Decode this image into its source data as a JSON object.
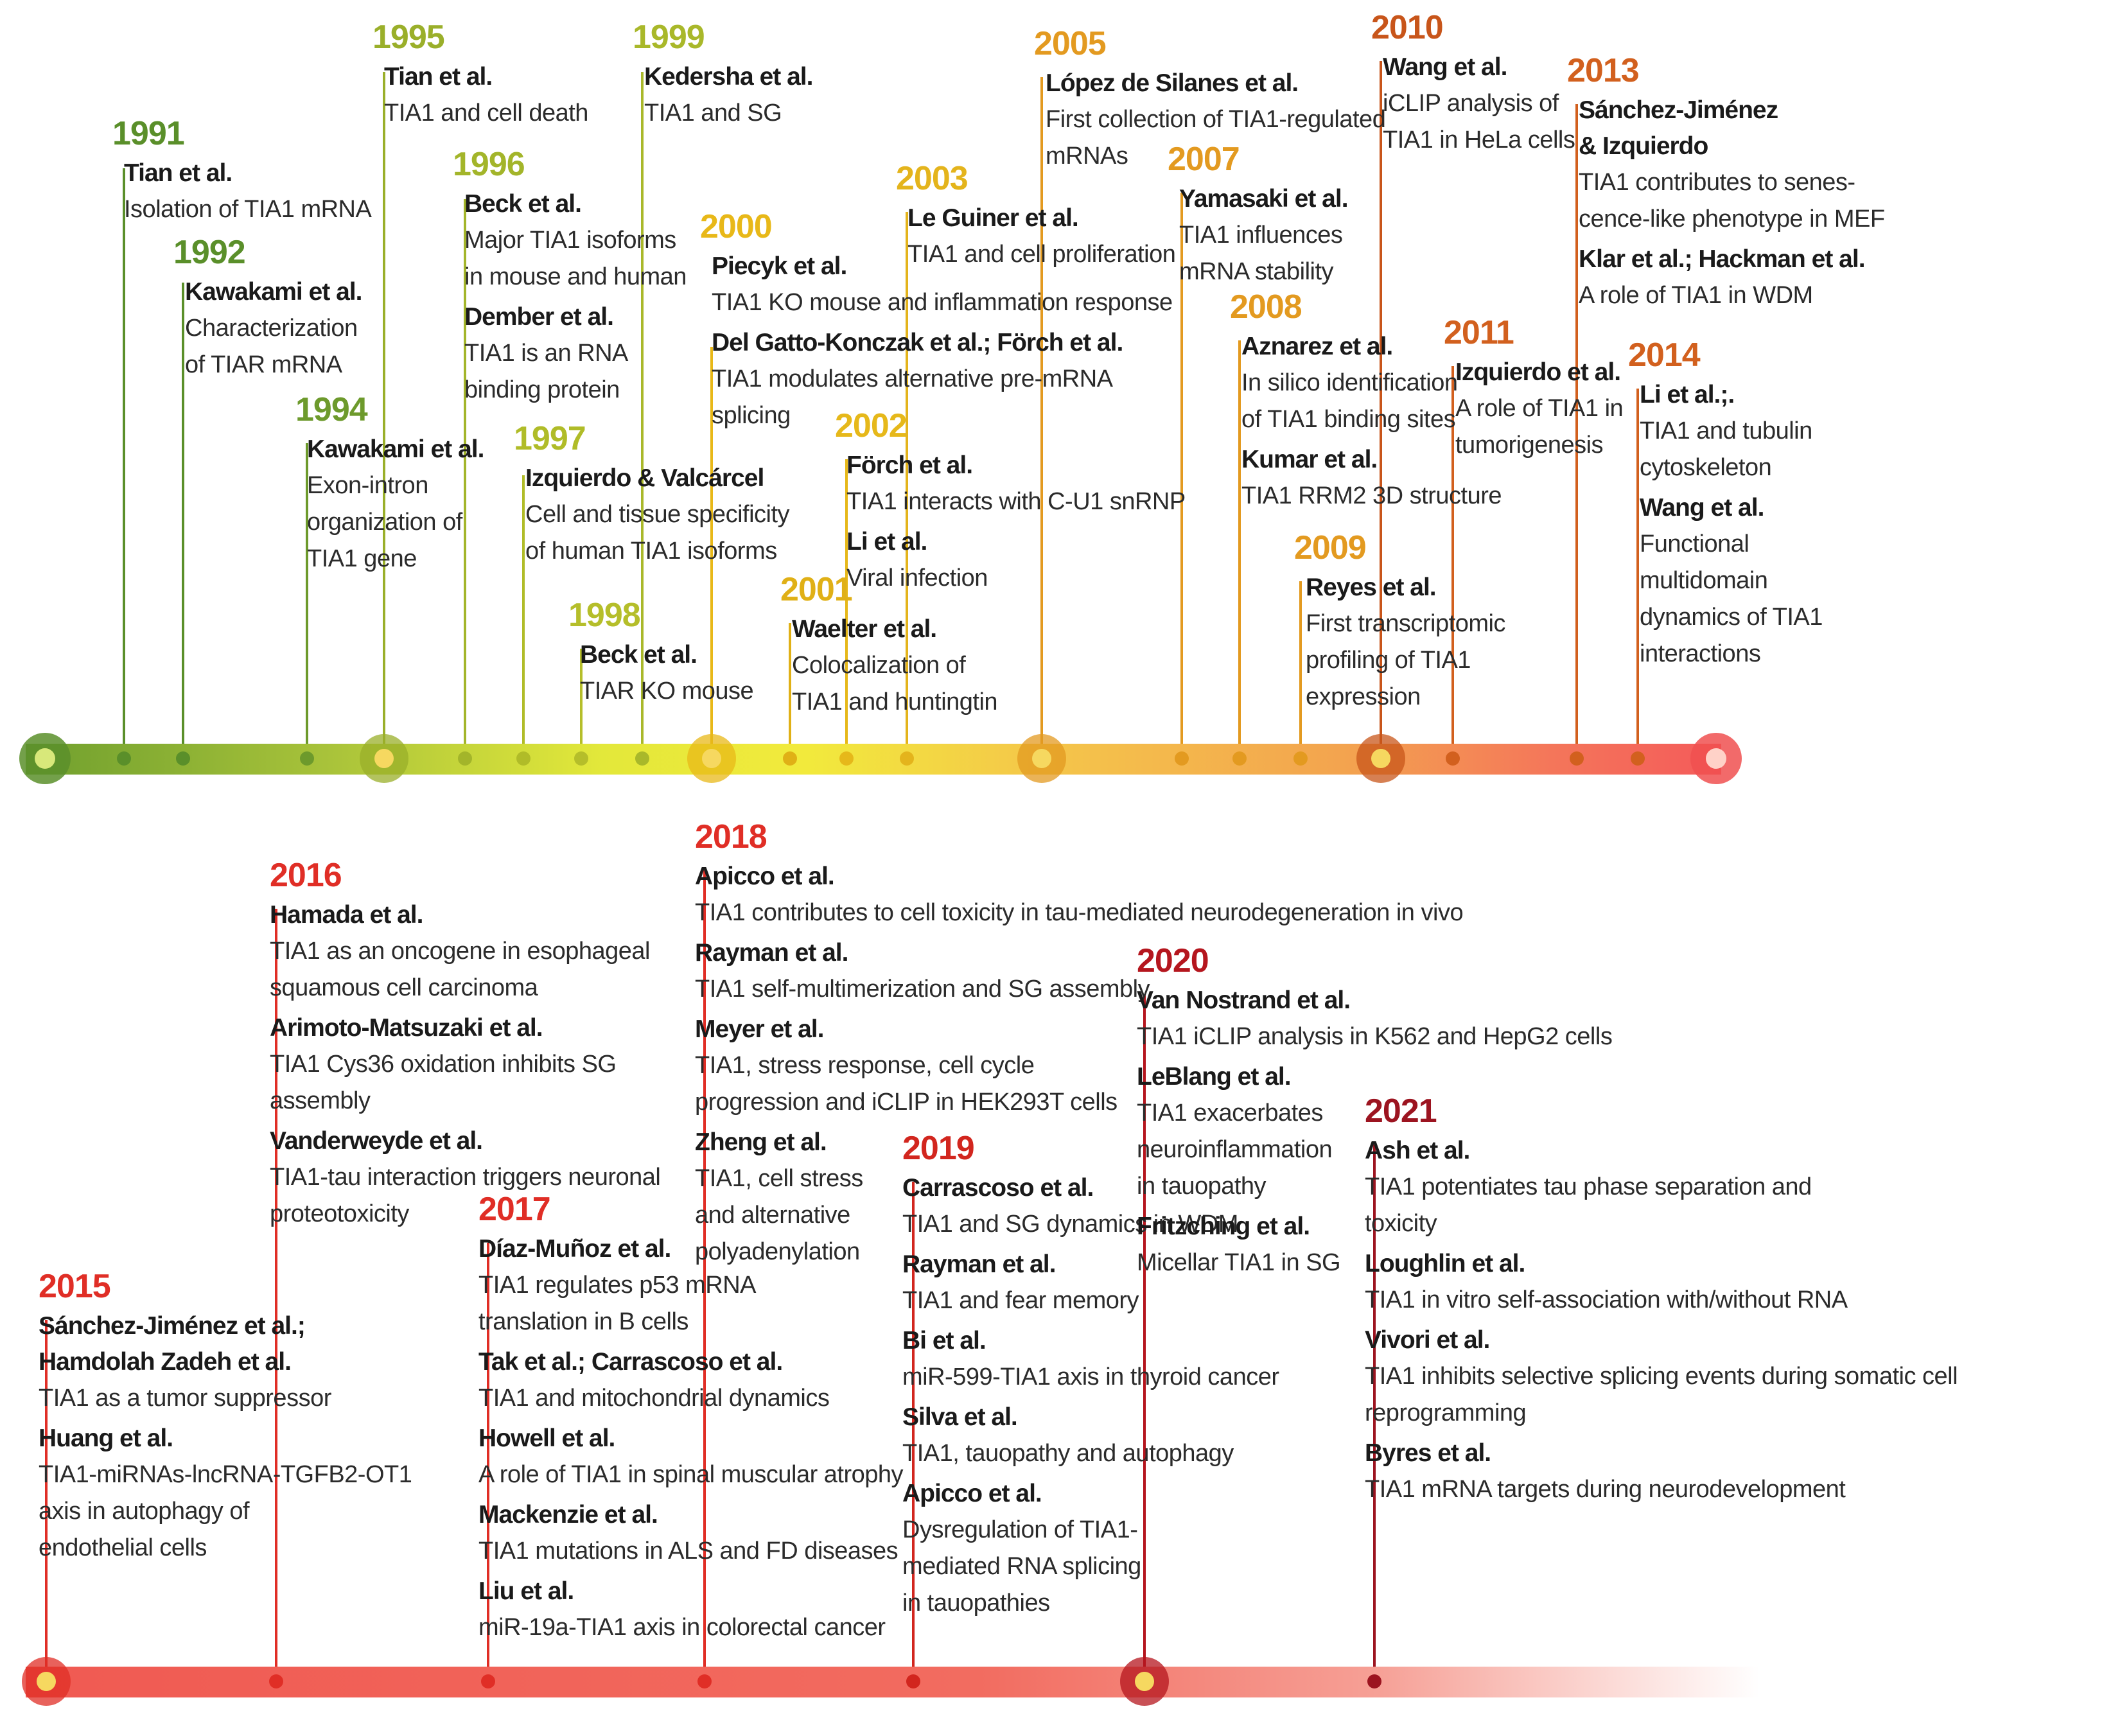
{
  "events": [
    {
      "year": "1991",
      "color": "#5a8f2a",
      "entries": [
        {
          "authors": "Tian et al.",
          "desc": "Isolation of TIA1 mRNA"
        }
      ]
    },
    {
      "year": "1992",
      "color": "#5a8f2a",
      "entries": [
        {
          "authors": "Kawakami et al.",
          "desc": "Characterization\nof TIAR mRNA"
        }
      ]
    },
    {
      "year": "1994",
      "color": "#6d9a2c",
      "entries": [
        {
          "authors": "Kawakami et al.",
          "desc": "Exon-intron\norganization of\nTIA1 gene"
        }
      ]
    },
    {
      "year": "1995",
      "color": "#9aaf2a",
      "entries": [
        {
          "authors": "Tian et al.",
          "desc": "TIA1 and cell death"
        }
      ]
    },
    {
      "year": "1996",
      "color": "#a3b52a",
      "entries": [
        {
          "authors": "Beck et al.",
          "desc": "Major TIA1 isoforms\nin mouse and human"
        },
        {
          "authors": "Dember et al.",
          "desc": "TIA1 is an RNA\nbinding protein"
        }
      ]
    },
    {
      "year": "1997",
      "color": "#b0bc28",
      "entries": [
        {
          "authors": "Izquierdo & Valcárcel",
          "desc": "Cell and tissue specificity\nof human TIA1 isoforms"
        }
      ]
    },
    {
      "year": "1998",
      "color": "#b5be2a",
      "entries": [
        {
          "authors": "Beck et al.",
          "desc": "TIAR KO mouse"
        }
      ]
    },
    {
      "year": "1999",
      "color": "#a9b82a",
      "entries": [
        {
          "authors": "Kedersha et al.",
          "desc": "TIA1 and SG"
        }
      ]
    },
    {
      "year": "2000",
      "color": "#e8b818",
      "entries": [
        {
          "authors": "Piecyk et al.",
          "desc": "TIA1 KO mouse and inflammation response"
        },
        {
          "authors": "Del Gatto-Konczak et al.; Förch et al.",
          "desc": "TIA1 modulates alternative pre-mRNA\nsplicing"
        }
      ]
    },
    {
      "year": "2001",
      "color": "#e0b016",
      "entries": [
        {
          "authors": "Waelter et al.",
          "desc": "Colocalization of\nTIA1 and huntingtin"
        }
      ]
    },
    {
      "year": "2002",
      "color": "#e6b81a",
      "entries": [
        {
          "authors": "Förch et al.",
          "desc": "TIA1 interacts with C-U1 snRNP"
        },
        {
          "authors": "Li et al.",
          "desc": "Viral infection"
        }
      ]
    },
    {
      "year": "2003",
      "color": "#e4b41c",
      "entries": [
        {
          "authors": "Le Guiner et al.",
          "desc": "TIA1 and cell proliferation"
        }
      ]
    },
    {
      "year": "2005",
      "color": "#e39a20",
      "entries": [
        {
          "authors": "López de Silanes et al.",
          "desc": "First collection of TIA1-regulated\nmRNAs"
        }
      ]
    },
    {
      "year": "2007",
      "color": "#e39a20",
      "entries": [
        {
          "authors": "Yamasaki et al.",
          "desc": "TIA1 influences\nmRNA stability"
        }
      ]
    },
    {
      "year": "2008",
      "color": "#e39a20",
      "entries": [
        {
          "authors": "Aznarez et al.",
          "desc": "In silico identification\nof TIA1 binding sites"
        },
        {
          "authors": "Kumar et al.",
          "desc": "TIA1 RRM2 3D structure"
        }
      ]
    },
    {
      "year": "2009",
      "color": "#e39a20",
      "entries": [
        {
          "authors": "Reyes et al.",
          "desc": "First transcriptomic\nprofiling of TIA1\nexpression"
        }
      ]
    },
    {
      "year": "2010",
      "color": "#c8551a",
      "entries": [
        {
          "authors": "Wang et al.",
          "desc": "iCLIP analysis of\nTIA1 in HeLa cells"
        }
      ]
    },
    {
      "year": "2011",
      "color": "#d2601e",
      "entries": [
        {
          "authors": "Izquierdo et al.",
          "desc": "A role of TIA1 in\ntumorigenesis"
        }
      ]
    },
    {
      "year": "2013",
      "color": "#d2601e",
      "entries": [
        {
          "authors": "Sánchez-Jiménez\n& Izquierdo",
          "desc": "TIA1 contributes to senes-\ncence-like phenotype in MEF"
        },
        {
          "authors": "Klar et al.; Hackman et al.",
          "desc": "A role of TIA1 in WDM"
        }
      ]
    },
    {
      "year": "2014",
      "color": "#d2601e",
      "entries": [
        {
          "authors": "Li et al.;.",
          "desc": "TIA1 and tubulin\ncytoskeleton"
        },
        {
          "authors": "Wang et al.",
          "desc": "Functional\nmultidomain\ndynamics of TIA1\ninteractions"
        }
      ]
    },
    {
      "year": "2015",
      "color": "#e02e26",
      "entries": [
        {
          "authors": "Sánchez-Jiménez et al.;\nHamdolah Zadeh et al.",
          "desc": "TIA1 as a tumor suppressor"
        },
        {
          "authors": "Huang et al.",
          "desc": "TIA1-miRNAs-lncRNA-TGFB2-OT1\naxis in autophagy of\nendothelial cells"
        }
      ]
    },
    {
      "year": "2016",
      "color": "#e02e26",
      "entries": [
        {
          "authors": "Hamada et al.",
          "desc": "TIA1 as an oncogene in esophageal\nsquamous cell carcinoma"
        },
        {
          "authors": "Arimoto-Matsuzaki et al.",
          "desc": "TIA1 Cys36 oxidation inhibits SG\nassembly"
        },
        {
          "authors": "Vanderweyde et al.",
          "desc": "TIA1-tau interaction triggers neuronal\nproteotoxicity"
        }
      ]
    },
    {
      "year": "2017",
      "color": "#e02e26",
      "entries": [
        {
          "authors": "Díaz-Muñoz et al.",
          "desc": "TIA1 regulates p53 mRNA\ntranslation in B cells"
        },
        {
          "authors": "Tak et al.; Carrascoso et al.",
          "desc": "TIA1 and mitochondrial dynamics"
        },
        {
          "authors": "Howell et al.",
          "desc": "A role of TIA1 in spinal muscular atrophy"
        },
        {
          "authors": "Mackenzie et al.",
          "desc": "TIA1 mutations in ALS and FD diseases"
        },
        {
          "authors": "Liu et al.",
          "desc": "miR-19a-TIA1 axis in colorectal cancer"
        }
      ]
    },
    {
      "year": "2018",
      "color": "#e02e26",
      "entries": [
        {
          "authors": "Apicco et al.",
          "desc": "TIA1 contributes to cell toxicity in tau-mediated neurodegeneration in vivo"
        },
        {
          "authors": "Rayman et al.",
          "desc": "TIA1 self-multimerization and SG assembly"
        },
        {
          "authors": "Meyer et al.",
          "desc": "TIA1, stress response, cell cycle\nprogression and iCLIP in HEK293T cells"
        },
        {
          "authors": "Zheng et al.",
          "desc": "TIA1, cell stress\nand alternative\npolyadenylation"
        }
      ]
    },
    {
      "year": "2019",
      "color": "#d2261e",
      "entries": [
        {
          "authors": "Carrascoso et al.",
          "desc": "TIA1 and SG dynamics in WDM"
        },
        {
          "authors": "Rayman et al.",
          "desc": "TIA1 and fear memory"
        },
        {
          "authors": "Bi et al.",
          "desc": "miR-599-TIA1 axis in thyroid cancer"
        },
        {
          "authors": "Silva et al.",
          "desc": "TIA1, tauopathy and autophagy"
        },
        {
          "authors": "Apicco et al.",
          "desc": "Dysregulation of TIA1-\nmediated RNA splicing\nin tauopathies"
        }
      ]
    },
    {
      "year": "2020",
      "color": "#b5161e",
      "entries": [
        {
          "authors": "Van Nostrand et al.",
          "desc": "TIA1 iCLIP analysis in K562 and HepG2 cells"
        },
        {
          "authors": "LeBlang et al.",
          "desc": "TIA1 exacerbates\nneuroinflammation\nin tauopathy"
        },
        {
          "authors": "Fritzching et al.",
          "desc": "Micellar TIA1 in SG"
        }
      ]
    },
    {
      "year": "2021",
      "color": "#9c1420",
      "entries": [
        {
          "authors": "Ash et al.",
          "desc": "TIA1 potentiates tau phase separation and\ntoxicity"
        },
        {
          "authors": "Loughlin et al.",
          "desc": "TIA1 in vitro self-association with/without RNA"
        },
        {
          "authors": "Vivori et al.",
          "desc": "TIA1 inhibits selective splicing events during somatic cell reprogramming"
        },
        {
          "authors": "Byres et al.",
          "desc": "TIA1 mRNA targets during neurodevelopment"
        }
      ]
    }
  ]
}
